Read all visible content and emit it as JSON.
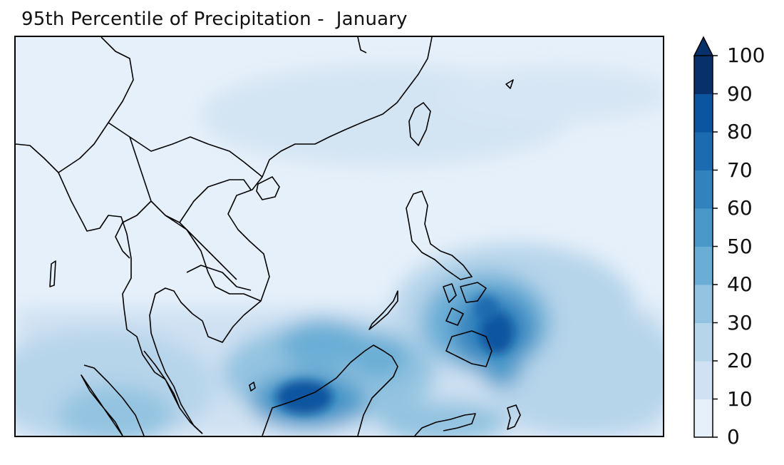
{
  "title": "95th Percentile of Precipitation -  January",
  "colorbar": {
    "ticks": [
      "0",
      "10",
      "20",
      "30",
      "40",
      "50",
      "60",
      "70",
      "80",
      "90",
      "100"
    ],
    "levels": [
      {
        "min": 0,
        "max": 10,
        "color": "#e6f0fa"
      },
      {
        "min": 10,
        "max": 20,
        "color": "#cfe1f2"
      },
      {
        "min": 20,
        "max": 30,
        "color": "#b6d4ea"
      },
      {
        "min": 30,
        "max": 40,
        "color": "#93c3e0"
      },
      {
        "min": 40,
        "max": 50,
        "color": "#6aaed6"
      },
      {
        "min": 50,
        "max": 60,
        "color": "#4a98c9"
      },
      {
        "min": 60,
        "max": 70,
        "color": "#3182bd"
      },
      {
        "min": 70,
        "max": 80,
        "color": "#1c6bb0"
      },
      {
        "min": 80,
        "max": 90,
        "color": "#0b559f"
      },
      {
        "min": 90,
        "max": 100,
        "color": "#08306b"
      }
    ],
    "extend": "max"
  }
}
